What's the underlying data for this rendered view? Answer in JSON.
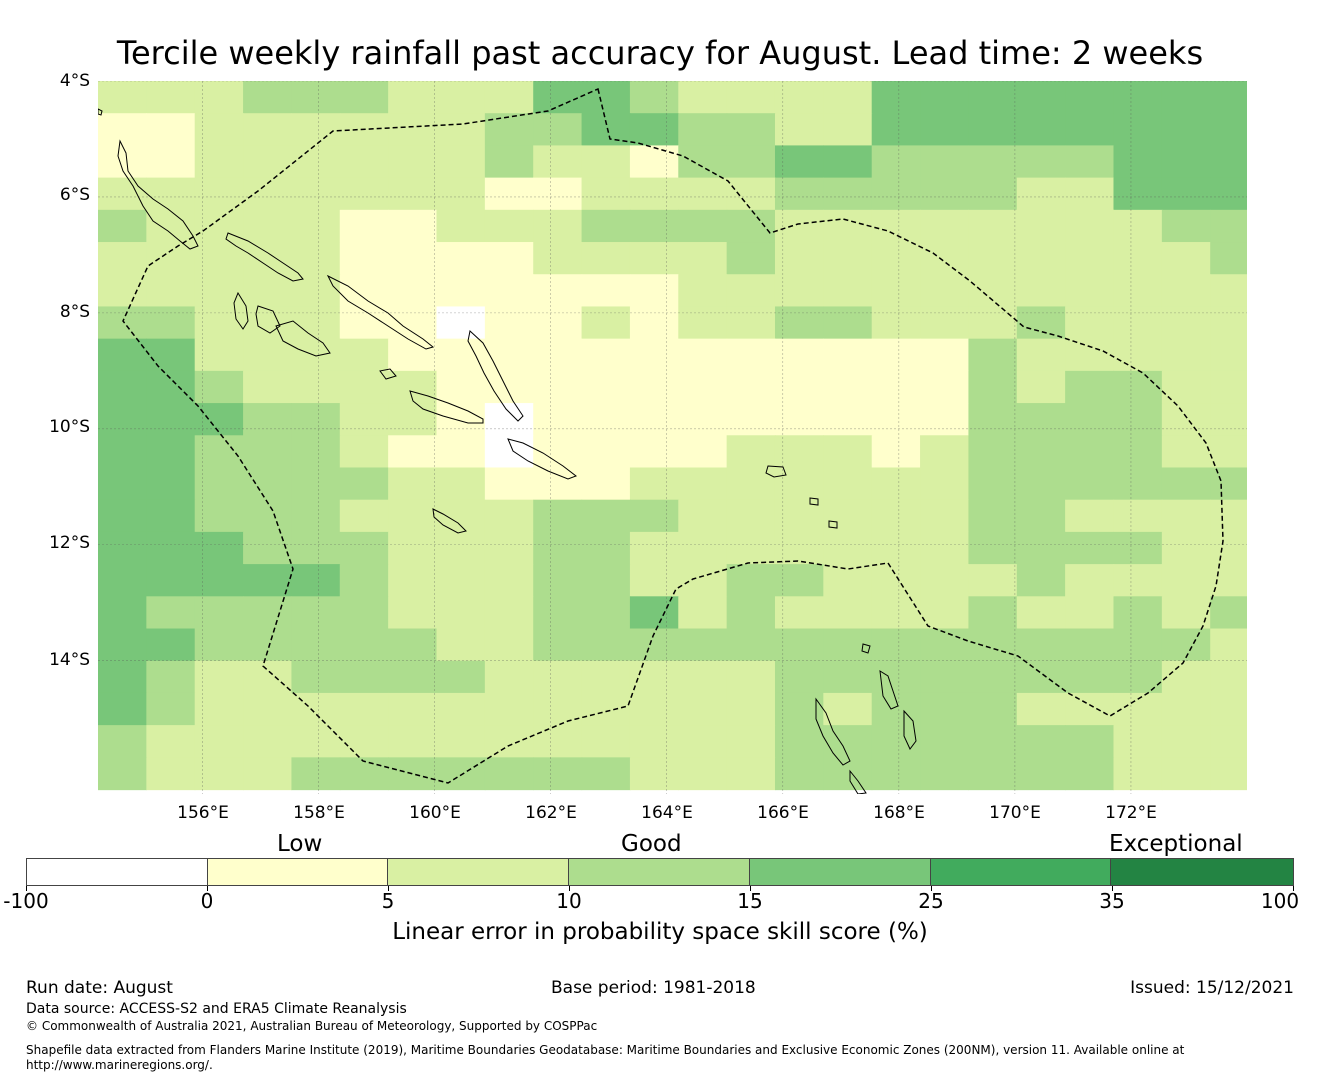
{
  "title": "Tercile weekly rainfall past accuracy for August. Lead time: 2 weeks",
  "map": {
    "lon_range": [
      154.2,
      174.0
    ],
    "lat_range": [
      -16.3,
      -4.0
    ],
    "lat_labels": [
      "4°S",
      "6°S",
      "8°S",
      "10°S",
      "12°S",
      "14°S"
    ],
    "lon_labels": [
      "156°E",
      "158°E",
      "160°E",
      "162°E",
      "164°E",
      "166°E",
      "168°E",
      "170°E",
      "172°E"
    ],
    "grid_cells": {
      "lon_start": 154.2,
      "lat_start": -4.0,
      "cell_size_deg": [
        0.8333,
        0.5556
      ],
      "cols": 24,
      "rows": 22,
      "class_legend": "0:<0 1:0-5 2:5-10 3:10-15 4:15-25 5:25-35 6:35-100",
      "rows_data": [
        "222333222443222244444444",
        "112222223344332244444444",
        "112222223221334433333444",
        "222222221122223333322444",
        "322221122233332222222233",
        "222221111222232222222223",
        "222221111111222222222222",
        "332221101121223322232222",
        "442222111111111111322222",
        "443222211111111111323322",
        "444332210111111111333322",
        "443332110111122212333322",
        "443333221112222222333333",
        "443332222333222222332222",
        "444333222332222222333322",
        "444443222332233222232222",
        "433333222334232222322323",
        "443333322333333333333332",
        "432233332222223333333322",
        "432222222222223233322222",
        "322222222222223333333222",
        "322233333332223333333222"
      ]
    }
  },
  "legend": {
    "categories": [
      "Low",
      "Good",
      "Exceptional"
    ],
    "ticks": [
      "-100",
      "0",
      "5",
      "10",
      "15",
      "25",
      "35",
      "100"
    ],
    "colors": [
      "#ffffff",
      "#ffffcc",
      "#d9f0a3",
      "#addd8e",
      "#78c679",
      "#41ab5d",
      "#238443"
    ],
    "label": "Linear error in probability space skill score (%)"
  },
  "footer": {
    "run_date": "Run date: August",
    "base_period": "Base period: 1981-2018",
    "issued": "Issued: 15/12/2021",
    "data_source": "Data source: ACCESS-S2 and ERA5 Climate Reanalysis",
    "copyright": "© Commonwealth of Australia 2021, Australian Bureau of Meteorology, Supported by COSPPac",
    "shapefile_line1": "Shapefile data extracted from Flanders Marine Institute (2019), Maritime Boundaries Geodatabase: Maritime Boundaries and Exclusive Economic Zones (200NM), version 11. Available online at",
    "shapefile_line2": "http://www.marineregions.org/."
  }
}
